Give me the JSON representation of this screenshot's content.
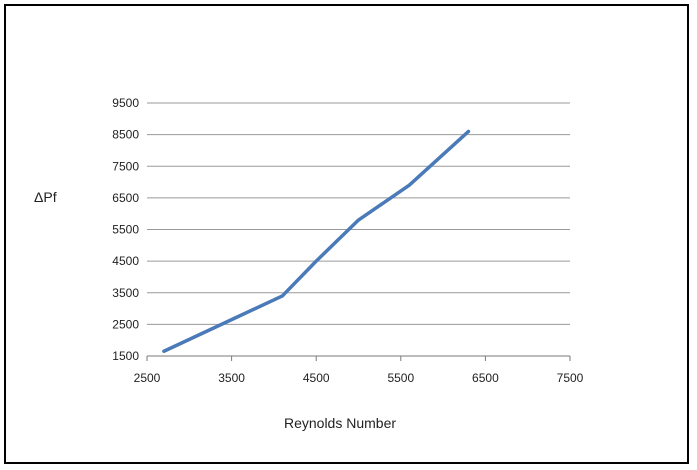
{
  "chart_data": {
    "type": "line",
    "title": "",
    "xlabel": "Reynolds Number",
    "ylabel": "ΔPf",
    "xlim": [
      2500,
      7500
    ],
    "ylim": [
      1500,
      9500
    ],
    "xticks": [
      2500,
      3500,
      4500,
      5500,
      6500,
      7500
    ],
    "yticks": [
      1500,
      2500,
      3500,
      4500,
      5500,
      6500,
      7500,
      8500,
      9500
    ],
    "grid": "horizontal",
    "legend": "none",
    "series": [
      {
        "color": "#4a7ab8",
        "x": [
          2700,
          3500,
          4100,
          4500,
          5000,
          5600,
          6300
        ],
        "y": [
          1650,
          2650,
          3400,
          4500,
          5800,
          6900,
          8600
        ]
      }
    ]
  }
}
